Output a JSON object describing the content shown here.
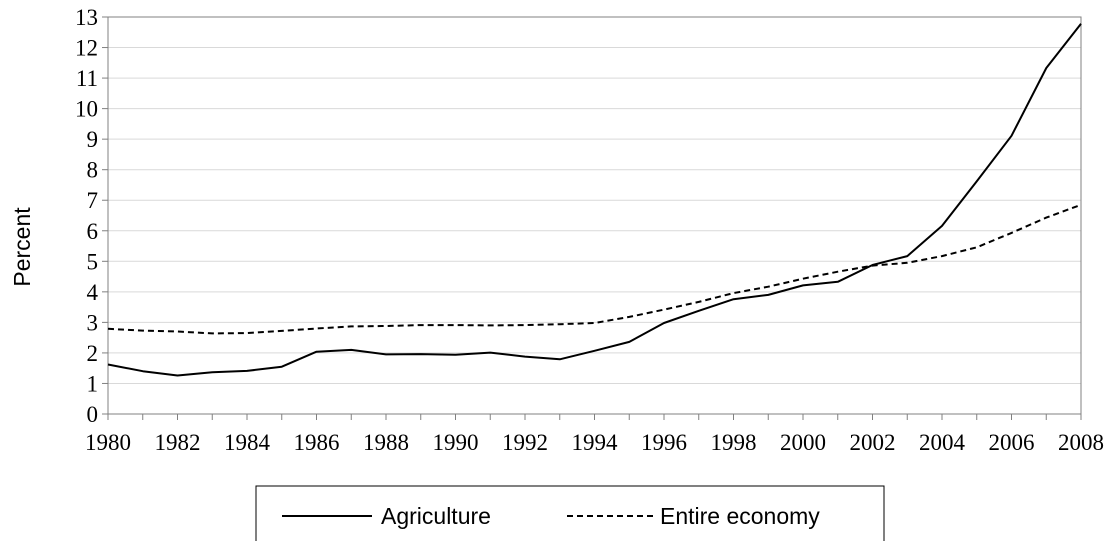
{
  "chart_data": {
    "type": "line",
    "ylabel": "Percent",
    "xlabel": "",
    "ylim": [
      0,
      13
    ],
    "yticks": [
      "0",
      "1",
      "2",
      "3",
      "4",
      "5",
      "6",
      "7",
      "8",
      "9",
      "10",
      "11",
      "12",
      "13"
    ],
    "xticks": [
      "1980",
      "1982",
      "1984",
      "1986",
      "1988",
      "1990",
      "1992",
      "1994",
      "1996",
      "1998",
      "2000",
      "2002",
      "2004",
      "2006",
      "2008"
    ],
    "x": [
      1980,
      1981,
      1982,
      1983,
      1984,
      1985,
      1986,
      1987,
      1988,
      1989,
      1990,
      1991,
      1992,
      1993,
      1994,
      1995,
      1996,
      1997,
      1998,
      1999,
      2000,
      2001,
      2002,
      2003,
      2004,
      2005,
      2006,
      2007,
      2008
    ],
    "series": [
      {
        "name": "Agriculture",
        "style": "solid",
        "color": "#000000",
        "values": [
          1.62,
          1.4,
          1.26,
          1.37,
          1.41,
          1.55,
          2.04,
          2.1,
          1.95,
          1.96,
          1.94,
          2.01,
          1.88,
          1.79,
          2.07,
          2.36,
          2.98,
          3.38,
          3.76,
          3.9,
          4.21,
          4.33,
          4.88,
          5.17,
          6.16,
          7.62,
          9.11,
          11.33,
          12.78
        ]
      },
      {
        "name": "Entire economy",
        "style": "dashed",
        "color": "#000000",
        "values": [
          2.79,
          2.73,
          2.7,
          2.64,
          2.65,
          2.72,
          2.8,
          2.87,
          2.88,
          2.91,
          2.91,
          2.9,
          2.91,
          2.94,
          2.98,
          3.18,
          3.42,
          3.67,
          3.96,
          4.17,
          4.43,
          4.66,
          4.86,
          4.95,
          5.17,
          5.46,
          5.93,
          6.43,
          6.85
        ]
      }
    ],
    "grid": "horizontal",
    "legend": "bottom"
  }
}
